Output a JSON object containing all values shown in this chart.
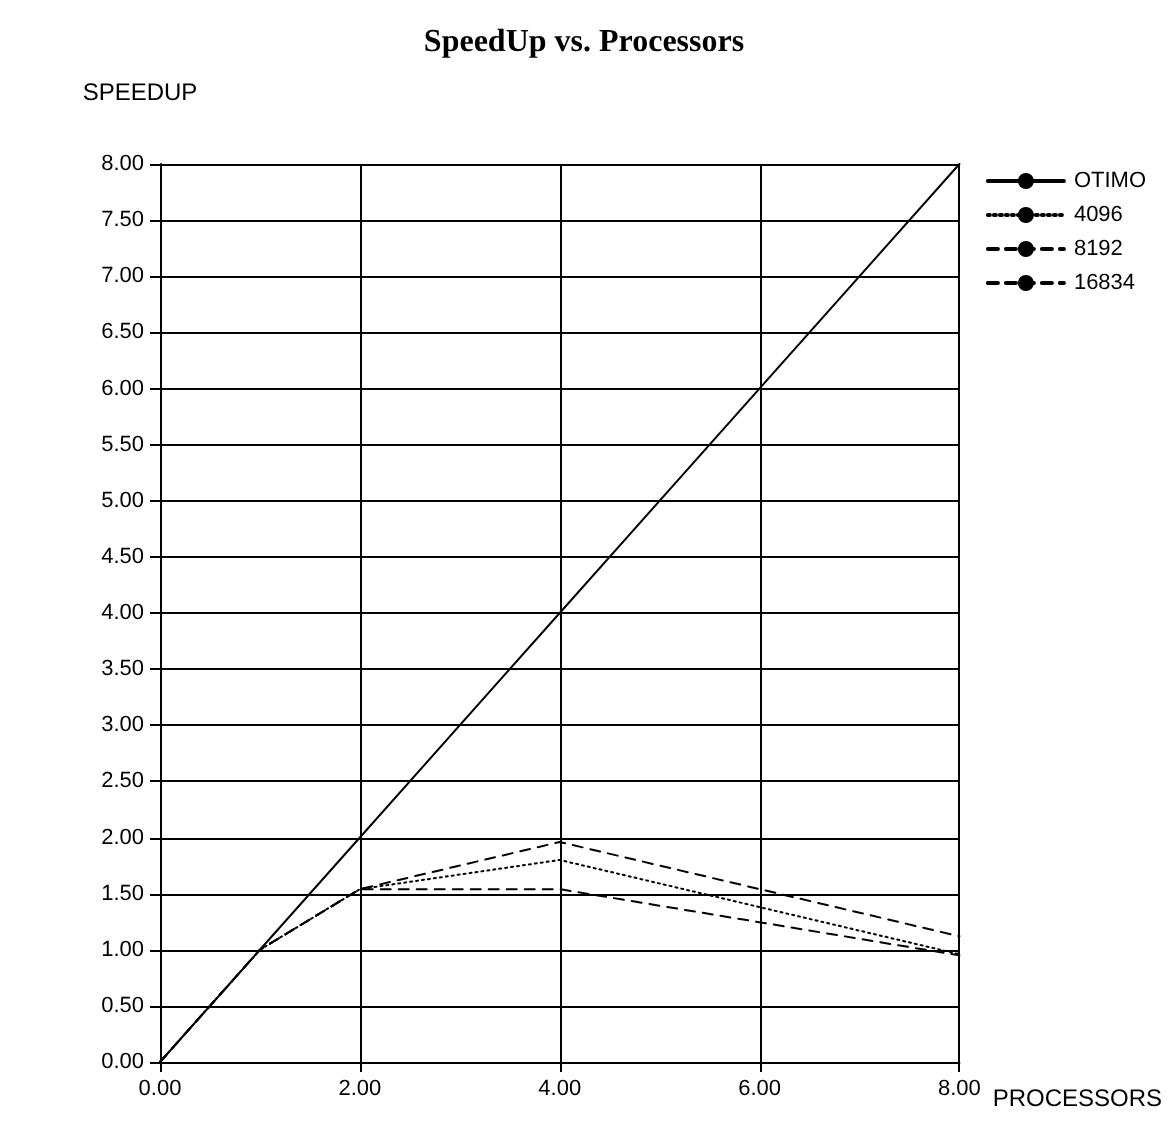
{
  "chart_data": {
    "type": "line",
    "title": "SpeedUp vs. Processors",
    "xlabel": "PROCESSORS",
    "ylabel": "SPEEDUP",
    "x": [
      0,
      1,
      2,
      4,
      8
    ],
    "series": [
      {
        "name": "OTIMO",
        "color": "#000000",
        "line_style": "solid",
        "values": [
          0,
          1,
          2,
          4,
          8
        ]
      },
      {
        "name": "4096",
        "color": "#000000",
        "line_style": "dotted",
        "values": [
          0,
          1,
          1.54,
          1.8,
          0.96
        ]
      },
      {
        "name": "8192",
        "color": "#000000",
        "line_style": "dashed",
        "values": [
          0,
          1,
          1.54,
          1.96,
          1.12
        ]
      },
      {
        "name": "16834",
        "color": "#000000",
        "line_style": "dashed",
        "values": [
          0,
          1,
          1.54,
          1.54,
          0.95
        ]
      }
    ],
    "xlim": [
      0,
      8
    ],
    "xticks": [
      {
        "value": 0,
        "label": "0.00"
      },
      {
        "value": 2,
        "label": "2.00"
      },
      {
        "value": 4,
        "label": "4.00"
      },
      {
        "value": 6,
        "label": "6.00"
      },
      {
        "value": 8,
        "label": "8.00"
      }
    ],
    "ylim": [
      0,
      8
    ],
    "yticks": [
      {
        "value": 0,
        "label": "0.00"
      },
      {
        "value": 0.5,
        "label": "0.50"
      },
      {
        "value": 1,
        "label": "1.00"
      },
      {
        "value": 1.5,
        "label": "1.50"
      },
      {
        "value": 2,
        "label": "2.00"
      },
      {
        "value": 2.5,
        "label": "2.50"
      },
      {
        "value": 3,
        "label": "3.00"
      },
      {
        "value": 3.5,
        "label": "3.50"
      },
      {
        "value": 4,
        "label": "4.00"
      },
      {
        "value": 4.5,
        "label": "4.50"
      },
      {
        "value": 5,
        "label": "5.00"
      },
      {
        "value": 5.5,
        "label": "5.50"
      },
      {
        "value": 6,
        "label": "6.00"
      },
      {
        "value": 6.5,
        "label": "6.50"
      },
      {
        "value": 7,
        "label": "7.00"
      },
      {
        "value": 7.5,
        "label": "7.50"
      },
      {
        "value": 8,
        "label": "8.00"
      }
    ],
    "grid": true,
    "legend": "top right",
    "marker": "none"
  }
}
